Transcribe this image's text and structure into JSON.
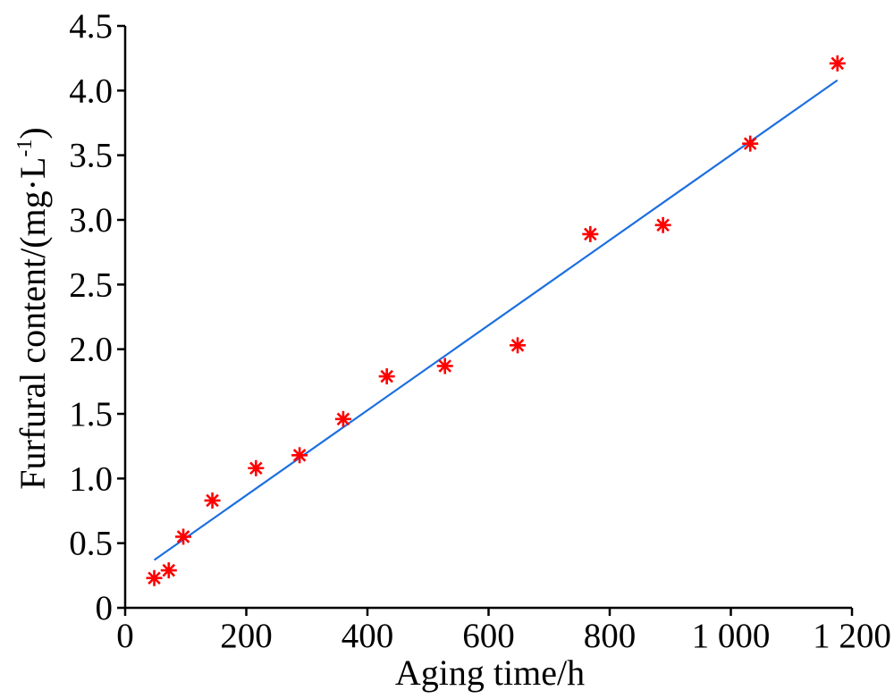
{
  "chart_data": {
    "type": "scatter",
    "xlabel": "Aging time/h",
    "ylabel": {
      "main": "Furfural content/(mg·L",
      "sup": "-1",
      "end": ")"
    },
    "xlim": [
      0,
      1200
    ],
    "ylim": [
      0,
      4.5
    ],
    "xticks": [
      0,
      200,
      400,
      600,
      800,
      1000,
      1200
    ],
    "xtick_labels": [
      "0",
      "200",
      "400",
      "600",
      "800",
      "1 000",
      "1 200"
    ],
    "yticks": [
      0,
      0.5,
      1.0,
      1.5,
      2.0,
      2.5,
      3.0,
      3.5,
      4.0,
      4.5
    ],
    "ytick_labels": [
      "0",
      "0.5",
      "1.0",
      "1.5",
      "2.0",
      "2.5",
      "3.0",
      "3.5",
      "4.0",
      "4.5"
    ],
    "grid": false,
    "series": [
      {
        "type": "scatter",
        "marker": "asterisk",
        "color": "#ff0000",
        "x": [
          48,
          72,
          96,
          144,
          216,
          288,
          360,
          432,
          528,
          648,
          768,
          888,
          1032,
          1176
        ],
        "y": [
          0.23,
          0.29,
          0.55,
          0.83,
          1.08,
          1.18,
          1.46,
          1.79,
          1.87,
          2.03,
          2.89,
          2.96,
          3.59,
          4.21
        ]
      },
      {
        "type": "line",
        "color": "#1c6fe0",
        "x": [
          48,
          1176
        ],
        "y": [
          0.37,
          4.08
        ]
      }
    ]
  }
}
